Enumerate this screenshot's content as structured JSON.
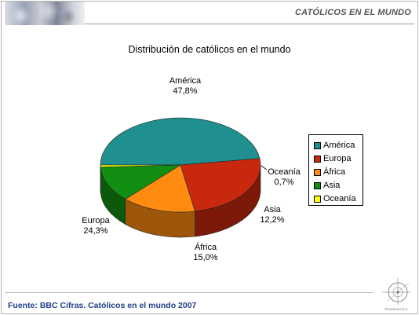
{
  "header": {
    "title": "CATÓLICOS EN EL MUNDO"
  },
  "footer": {
    "source": "Fuente: BBC Cifras. Católicos en el mundo 2007",
    "logo_text": "Panamerica"
  },
  "chart_data": {
    "type": "pie",
    "title": "Distribución de católicos en el mundo",
    "categories": [
      "América",
      "Europa",
      "África",
      "Asia",
      "Oceanía"
    ],
    "values": [
      47.8,
      24.3,
      15.0,
      12.2,
      0.7
    ],
    "value_labels": [
      "47,8%",
      "24,3%",
      "15,0%",
      "12,2%",
      "0,7%"
    ],
    "colors": [
      "#1f8f8f",
      "#c8290e",
      "#ff8c10",
      "#128f12",
      "#ffff00"
    ],
    "legend": {
      "position": "right",
      "entries": [
        "América",
        "Europa",
        "África",
        "Asia",
        "Oceanía"
      ]
    },
    "style": "3d"
  }
}
